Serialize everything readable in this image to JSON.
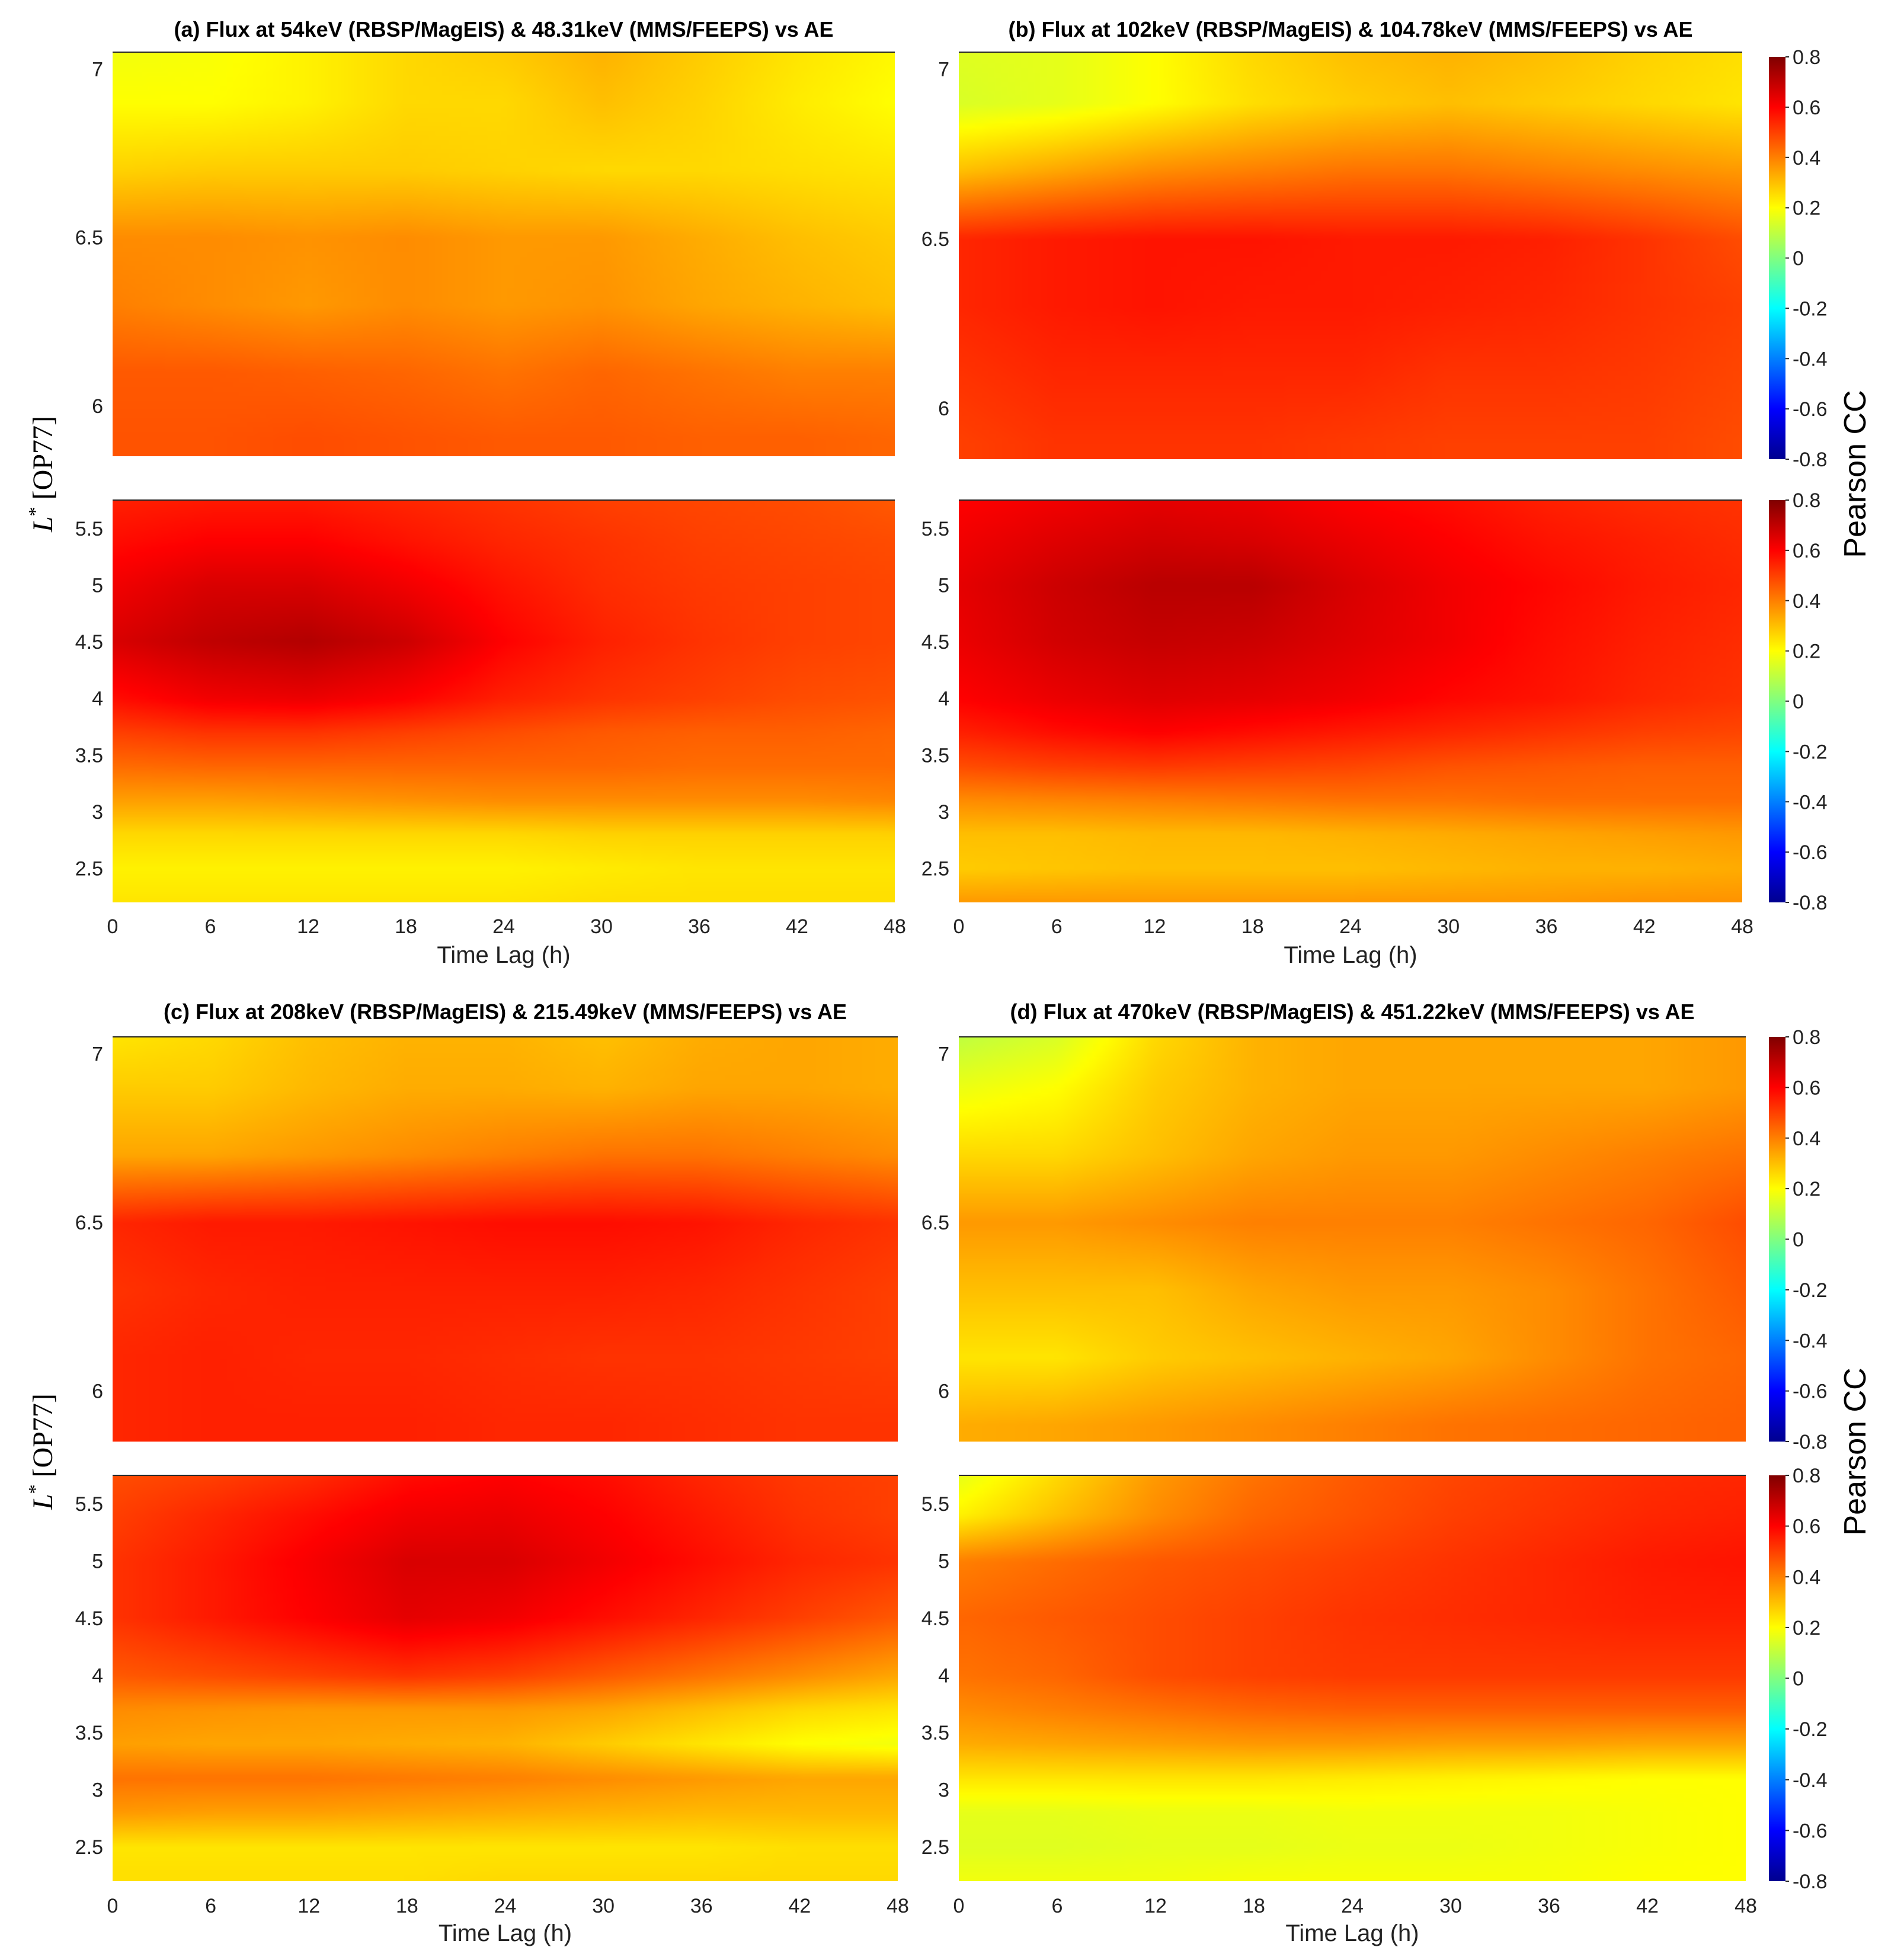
{
  "figure": {
    "ylabel_main": "L",
    "ylabel_sup": "*",
    "ylabel_rest": " [OP77]",
    "colorbar_label": "Pearson CC"
  },
  "colors": {
    "colormap": [
      "#00008f",
      "#0000ff",
      "#00ffff",
      "#ffff00",
      "#ff0000",
      "#800000"
    ],
    "colormap_range": [
      -0.8,
      0.8
    ]
  },
  "chart_data": [
    {
      "type": "heatmap",
      "title": "(a) Flux at 54keV (RBSP/MagEIS) & 48.31keV (MMS/FEEPS) vs AE",
      "xlabel": "Time Lag (h)",
      "x": [
        0,
        6,
        12,
        18,
        24,
        30,
        36,
        42,
        48
      ],
      "xticks": [
        0,
        6,
        12,
        18,
        24,
        30,
        36,
        42,
        48
      ],
      "top": {
        "ylim": [
          5.85,
          7.05
        ],
        "yticks": [
          6,
          6.5,
          7
        ],
        "y": [
          5.9,
          6.1,
          6.3,
          6.5,
          6.7,
          6.9,
          7.05
        ],
        "z": [
          [
            0.47,
            0.47,
            0.48,
            0.47,
            0.46,
            0.46,
            0.45,
            0.45,
            0.44
          ],
          [
            0.46,
            0.46,
            0.45,
            0.44,
            0.42,
            0.44,
            0.42,
            0.4,
            0.4
          ],
          [
            0.4,
            0.38,
            0.36,
            0.38,
            0.36,
            0.37,
            0.34,
            0.32,
            0.3
          ],
          [
            0.38,
            0.38,
            0.37,
            0.38,
            0.36,
            0.36,
            0.33,
            0.3,
            0.28
          ],
          [
            0.27,
            0.28,
            0.28,
            0.28,
            0.27,
            0.26,
            0.26,
            0.25,
            0.24
          ],
          [
            0.2,
            0.2,
            0.22,
            0.26,
            0.26,
            0.3,
            0.27,
            0.23,
            0.2
          ],
          [
            0.18,
            0.19,
            0.22,
            0.26,
            0.28,
            0.32,
            0.28,
            0.24,
            0.21
          ]
        ]
      },
      "bottom": {
        "ylim": [
          2.2,
          5.75
        ],
        "yticks": [
          2.5,
          3,
          3.5,
          4,
          4.5,
          5,
          5.5
        ],
        "y": [
          2.2,
          2.5,
          2.8,
          3.1,
          3.4,
          3.7,
          4.0,
          4.5,
          5.0,
          5.4,
          5.75
        ],
        "z": [
          [
            0.24,
            0.24,
            0.24,
            0.24,
            0.24,
            0.25,
            0.25,
            0.25,
            0.25
          ],
          [
            0.22,
            0.22,
            0.22,
            0.22,
            0.22,
            0.23,
            0.24,
            0.24,
            0.24
          ],
          [
            0.26,
            0.26,
            0.26,
            0.26,
            0.26,
            0.27,
            0.27,
            0.27,
            0.27
          ],
          [
            0.35,
            0.35,
            0.36,
            0.37,
            0.38,
            0.38,
            0.38,
            0.38,
            0.39
          ],
          [
            0.43,
            0.44,
            0.44,
            0.44,
            0.44,
            0.44,
            0.43,
            0.43,
            0.43
          ],
          [
            0.5,
            0.52,
            0.52,
            0.5,
            0.48,
            0.46,
            0.45,
            0.45,
            0.44
          ],
          [
            0.58,
            0.62,
            0.63,
            0.6,
            0.55,
            0.52,
            0.5,
            0.48,
            0.47
          ],
          [
            0.66,
            0.7,
            0.72,
            0.68,
            0.6,
            0.55,
            0.52,
            0.5,
            0.49
          ],
          [
            0.62,
            0.66,
            0.66,
            0.62,
            0.57,
            0.53,
            0.51,
            0.5,
            0.49
          ],
          [
            0.58,
            0.6,
            0.6,
            0.57,
            0.54,
            0.52,
            0.5,
            0.49,
            0.48
          ],
          [
            0.55,
            0.56,
            0.56,
            0.54,
            0.52,
            0.5,
            0.49,
            0.48,
            0.46
          ]
        ]
      }
    },
    {
      "type": "heatmap",
      "title": "(b) Flux at 102keV (RBSP/MagEIS) & 104.78keV (MMS/FEEPS) vs AE",
      "xlabel": "Time Lag (h)",
      "x": [
        0,
        6,
        12,
        18,
        24,
        30,
        36,
        42,
        48
      ],
      "xticks": [
        0,
        6,
        12,
        18,
        24,
        30,
        36,
        42,
        48
      ],
      "top": {
        "ylim": [
          5.85,
          7.05
        ],
        "yticks": [
          6,
          6.5,
          7
        ],
        "y": [
          5.9,
          6.1,
          6.3,
          6.5,
          6.7,
          6.9,
          7.05
        ],
        "z": [
          [
            0.5,
            0.52,
            0.52,
            0.52,
            0.51,
            0.5,
            0.5,
            0.5,
            0.48
          ],
          [
            0.52,
            0.54,
            0.54,
            0.54,
            0.54,
            0.52,
            0.52,
            0.51,
            0.49
          ],
          [
            0.54,
            0.56,
            0.57,
            0.56,
            0.56,
            0.55,
            0.54,
            0.52,
            0.5
          ],
          [
            0.54,
            0.56,
            0.57,
            0.57,
            0.56,
            0.56,
            0.55,
            0.52,
            0.48
          ],
          [
            0.3,
            0.34,
            0.38,
            0.4,
            0.42,
            0.42,
            0.4,
            0.38,
            0.36
          ],
          [
            0.14,
            0.16,
            0.2,
            0.25,
            0.28,
            0.3,
            0.28,
            0.26,
            0.24
          ],
          [
            0.15,
            0.16,
            0.2,
            0.26,
            0.3,
            0.32,
            0.3,
            0.27,
            0.25
          ]
        ]
      },
      "bottom": {
        "ylim": [
          2.2,
          5.75
        ],
        "yticks": [
          2.5,
          3,
          3.5,
          4,
          4.5,
          5,
          5.5
        ],
        "y": [
          2.2,
          2.5,
          2.8,
          3.1,
          3.4,
          3.7,
          4.0,
          4.5,
          5.0,
          5.4,
          5.75
        ],
        "z": [
          [
            0.36,
            0.36,
            0.36,
            0.36,
            0.36,
            0.36,
            0.36,
            0.37,
            0.37
          ],
          [
            0.28,
            0.29,
            0.3,
            0.3,
            0.3,
            0.31,
            0.32,
            0.32,
            0.33
          ],
          [
            0.3,
            0.3,
            0.31,
            0.31,
            0.32,
            0.33,
            0.34,
            0.35,
            0.36
          ],
          [
            0.38,
            0.39,
            0.4,
            0.41,
            0.42,
            0.42,
            0.43,
            0.43,
            0.43
          ],
          [
            0.48,
            0.5,
            0.51,
            0.5,
            0.49,
            0.47,
            0.46,
            0.45,
            0.45
          ],
          [
            0.55,
            0.58,
            0.6,
            0.58,
            0.56,
            0.54,
            0.52,
            0.5,
            0.49
          ],
          [
            0.6,
            0.63,
            0.65,
            0.64,
            0.62,
            0.59,
            0.57,
            0.54,
            0.52
          ],
          [
            0.63,
            0.67,
            0.69,
            0.68,
            0.65,
            0.62,
            0.58,
            0.55,
            0.53
          ],
          [
            0.64,
            0.68,
            0.71,
            0.71,
            0.66,
            0.62,
            0.59,
            0.56,
            0.54
          ],
          [
            0.62,
            0.65,
            0.67,
            0.66,
            0.63,
            0.6,
            0.57,
            0.55,
            0.53
          ],
          [
            0.6,
            0.62,
            0.64,
            0.63,
            0.6,
            0.58,
            0.55,
            0.53,
            0.52
          ]
        ]
      }
    },
    {
      "type": "heatmap",
      "title": "(c) Flux at 208keV (RBSP/MagEIS) & 215.49keV (MMS/FEEPS) vs AE",
      "xlabel": "Time Lag (h)",
      "x": [
        0,
        6,
        12,
        18,
        24,
        30,
        36,
        42,
        48
      ],
      "xticks": [
        0,
        6,
        12,
        18,
        24,
        30,
        36,
        42,
        48
      ],
      "top": {
        "ylim": [
          5.85,
          7.05
        ],
        "yticks": [
          6,
          6.5,
          7
        ],
        "y": [
          5.9,
          6.1,
          6.3,
          6.5,
          6.7,
          6.9,
          7.05
        ],
        "z": [
          [
            0.54,
            0.55,
            0.55,
            0.55,
            0.54,
            0.54,
            0.53,
            0.52,
            0.52
          ],
          [
            0.54,
            0.55,
            0.54,
            0.54,
            0.53,
            0.52,
            0.52,
            0.51,
            0.5
          ],
          [
            0.52,
            0.54,
            0.55,
            0.55,
            0.55,
            0.55,
            0.54,
            0.52,
            0.5
          ],
          [
            0.54,
            0.56,
            0.56,
            0.57,
            0.58,
            0.58,
            0.57,
            0.54,
            0.52
          ],
          [
            0.34,
            0.34,
            0.36,
            0.38,
            0.4,
            0.42,
            0.42,
            0.4,
            0.38
          ],
          [
            0.28,
            0.28,
            0.31,
            0.33,
            0.33,
            0.32,
            0.34,
            0.34,
            0.33
          ],
          [
            0.24,
            0.26,
            0.3,
            0.32,
            0.32,
            0.3,
            0.33,
            0.34,
            0.33
          ]
        ]
      },
      "bottom": {
        "ylim": [
          2.2,
          5.75
        ],
        "yticks": [
          2.5,
          3,
          3.5,
          4,
          4.5,
          5,
          5.5
        ],
        "y": [
          2.2,
          2.5,
          2.8,
          3.1,
          3.4,
          3.7,
          4.0,
          4.5,
          5.0,
          5.4,
          5.75
        ],
        "z": [
          [
            0.25,
            0.25,
            0.25,
            0.25,
            0.26,
            0.26,
            0.26,
            0.26,
            0.26
          ],
          [
            0.24,
            0.24,
            0.24,
            0.24,
            0.24,
            0.24,
            0.24,
            0.25,
            0.25
          ],
          [
            0.36,
            0.35,
            0.35,
            0.34,
            0.33,
            0.32,
            0.31,
            0.31,
            0.31
          ],
          [
            0.42,
            0.42,
            0.42,
            0.41,
            0.4,
            0.38,
            0.36,
            0.34,
            0.34
          ],
          [
            0.35,
            0.34,
            0.34,
            0.33,
            0.32,
            0.28,
            0.24,
            0.2,
            0.18
          ],
          [
            0.38,
            0.37,
            0.36,
            0.36,
            0.36,
            0.34,
            0.3,
            0.26,
            0.24
          ],
          [
            0.46,
            0.48,
            0.5,
            0.52,
            0.5,
            0.46,
            0.42,
            0.38,
            0.34
          ],
          [
            0.52,
            0.56,
            0.6,
            0.64,
            0.62,
            0.58,
            0.54,
            0.5,
            0.46
          ],
          [
            0.52,
            0.56,
            0.61,
            0.66,
            0.66,
            0.62,
            0.58,
            0.54,
            0.52
          ],
          [
            0.5,
            0.54,
            0.58,
            0.62,
            0.63,
            0.6,
            0.56,
            0.52,
            0.5
          ],
          [
            0.48,
            0.5,
            0.53,
            0.58,
            0.6,
            0.58,
            0.54,
            0.51,
            0.5
          ]
        ]
      }
    },
    {
      "type": "heatmap",
      "title": "(d) Flux at 470keV (RBSP/MagEIS) & 451.22keV (MMS/FEEPS) vs AE",
      "xlabel": "Time Lag (h)",
      "x": [
        0,
        6,
        12,
        18,
        24,
        30,
        36,
        42,
        48
      ],
      "xticks": [
        0,
        6,
        12,
        18,
        24,
        30,
        36,
        42,
        48
      ],
      "top": {
        "ylim": [
          5.85,
          7.05
        ],
        "yticks": [
          6,
          6.5,
          7
        ],
        "y": [
          5.9,
          6.1,
          6.3,
          6.5,
          6.7,
          6.9,
          7.05
        ],
        "z": [
          [
            0.33,
            0.34,
            0.36,
            0.38,
            0.4,
            0.42,
            0.43,
            0.44,
            0.45
          ],
          [
            0.24,
            0.24,
            0.28,
            0.3,
            0.32,
            0.34,
            0.38,
            0.42,
            0.44
          ],
          [
            0.3,
            0.3,
            0.3,
            0.34,
            0.36,
            0.36,
            0.38,
            0.42,
            0.46
          ],
          [
            0.36,
            0.36,
            0.38,
            0.4,
            0.4,
            0.4,
            0.42,
            0.44,
            0.48
          ],
          [
            0.26,
            0.26,
            0.3,
            0.34,
            0.36,
            0.36,
            0.38,
            0.4,
            0.42
          ],
          [
            0.17,
            0.2,
            0.28,
            0.32,
            0.34,
            0.34,
            0.34,
            0.34,
            0.36
          ],
          [
            0.1,
            0.14,
            0.26,
            0.32,
            0.34,
            0.34,
            0.34,
            0.34,
            0.36
          ]
        ]
      },
      "bottom": {
        "ylim": [
          2.2,
          5.75
        ],
        "yticks": [
          2.5,
          3,
          3.5,
          4,
          4.5,
          5,
          5.5
        ],
        "y": [
          2.2,
          2.5,
          2.8,
          3.1,
          3.4,
          3.7,
          4.0,
          4.5,
          5.0,
          5.4,
          5.75
        ],
        "z": [
          [
            0.18,
            0.18,
            0.18,
            0.19,
            0.19,
            0.19,
            0.19,
            0.2,
            0.2
          ],
          [
            0.15,
            0.15,
            0.16,
            0.16,
            0.17,
            0.17,
            0.18,
            0.19,
            0.2
          ],
          [
            0.16,
            0.16,
            0.17,
            0.17,
            0.18,
            0.18,
            0.18,
            0.19,
            0.2
          ],
          [
            0.24,
            0.24,
            0.24,
            0.24,
            0.23,
            0.22,
            0.21,
            0.2,
            0.2
          ],
          [
            0.33,
            0.34,
            0.35,
            0.36,
            0.36,
            0.35,
            0.35,
            0.34,
            0.34
          ],
          [
            0.38,
            0.4,
            0.42,
            0.44,
            0.45,
            0.45,
            0.45,
            0.45,
            0.45
          ],
          [
            0.42,
            0.44,
            0.48,
            0.5,
            0.51,
            0.51,
            0.51,
            0.51,
            0.51
          ],
          [
            0.44,
            0.46,
            0.48,
            0.5,
            0.52,
            0.53,
            0.54,
            0.55,
            0.55
          ],
          [
            0.4,
            0.43,
            0.46,
            0.48,
            0.5,
            0.52,
            0.54,
            0.56,
            0.57
          ],
          [
            0.22,
            0.3,
            0.38,
            0.44,
            0.47,
            0.5,
            0.52,
            0.54,
            0.55
          ],
          [
            0.16,
            0.26,
            0.36,
            0.42,
            0.46,
            0.49,
            0.51,
            0.53,
            0.54
          ]
        ]
      }
    }
  ],
  "colorbars": [
    {
      "range": [
        -0.8,
        0.8
      ],
      "ticks": [
        0.8,
        0.6,
        0.4,
        0.2,
        0,
        -0.2,
        -0.4,
        -0.6,
        -0.8
      ]
    }
  ]
}
